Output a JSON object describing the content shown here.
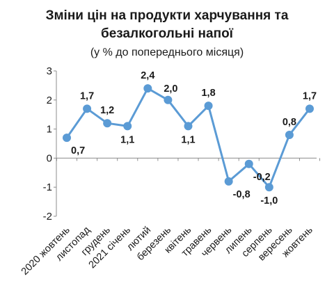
{
  "chart_data": {
    "type": "line",
    "title_lines": [
      "Зміни цін на продукти харчування та",
      "безалкогольні напої"
    ],
    "subtitle": "(у % до попереднього місяця)",
    "categories": [
      "2020 жовтень",
      "листопад",
      "грудень",
      "2021 січень",
      "лютий",
      "березень",
      "квітень",
      "травень",
      "червень",
      "липень",
      "серпень",
      "вересень",
      "жовтень"
    ],
    "series": [
      {
        "values": [
          0.7,
          1.7,
          1.2,
          1.1,
          2.4,
          2.0,
          1.1,
          1.8,
          -0.8,
          -0.2,
          -1.0,
          0.8,
          1.7
        ]
      }
    ],
    "data_labels": [
      "0,7",
      "1,7",
      "1,2",
      "1,1",
      "2,4",
      "2,0",
      "1,1",
      "1,8",
      "-0,8",
      "-0,2",
      "-1,0",
      "0,8",
      "1,7"
    ],
    "label_positions": [
      "below-right",
      "above",
      "above",
      "below",
      "above",
      "above-right",
      "below",
      "above",
      "below-right",
      "below-right",
      "below",
      "above",
      "above"
    ],
    "ylim": [
      -2,
      3
    ],
    "yticks": [
      -2,
      -1,
      0,
      1,
      2,
      3
    ],
    "ytick_labels": [
      "-2",
      "-1",
      "0",
      "1",
      "2",
      "3"
    ],
    "grid": false,
    "legend": "none",
    "colors": {
      "line": "#5B9BD5",
      "marker": "#5B9BD5",
      "axis": "#8c8c8c"
    }
  }
}
